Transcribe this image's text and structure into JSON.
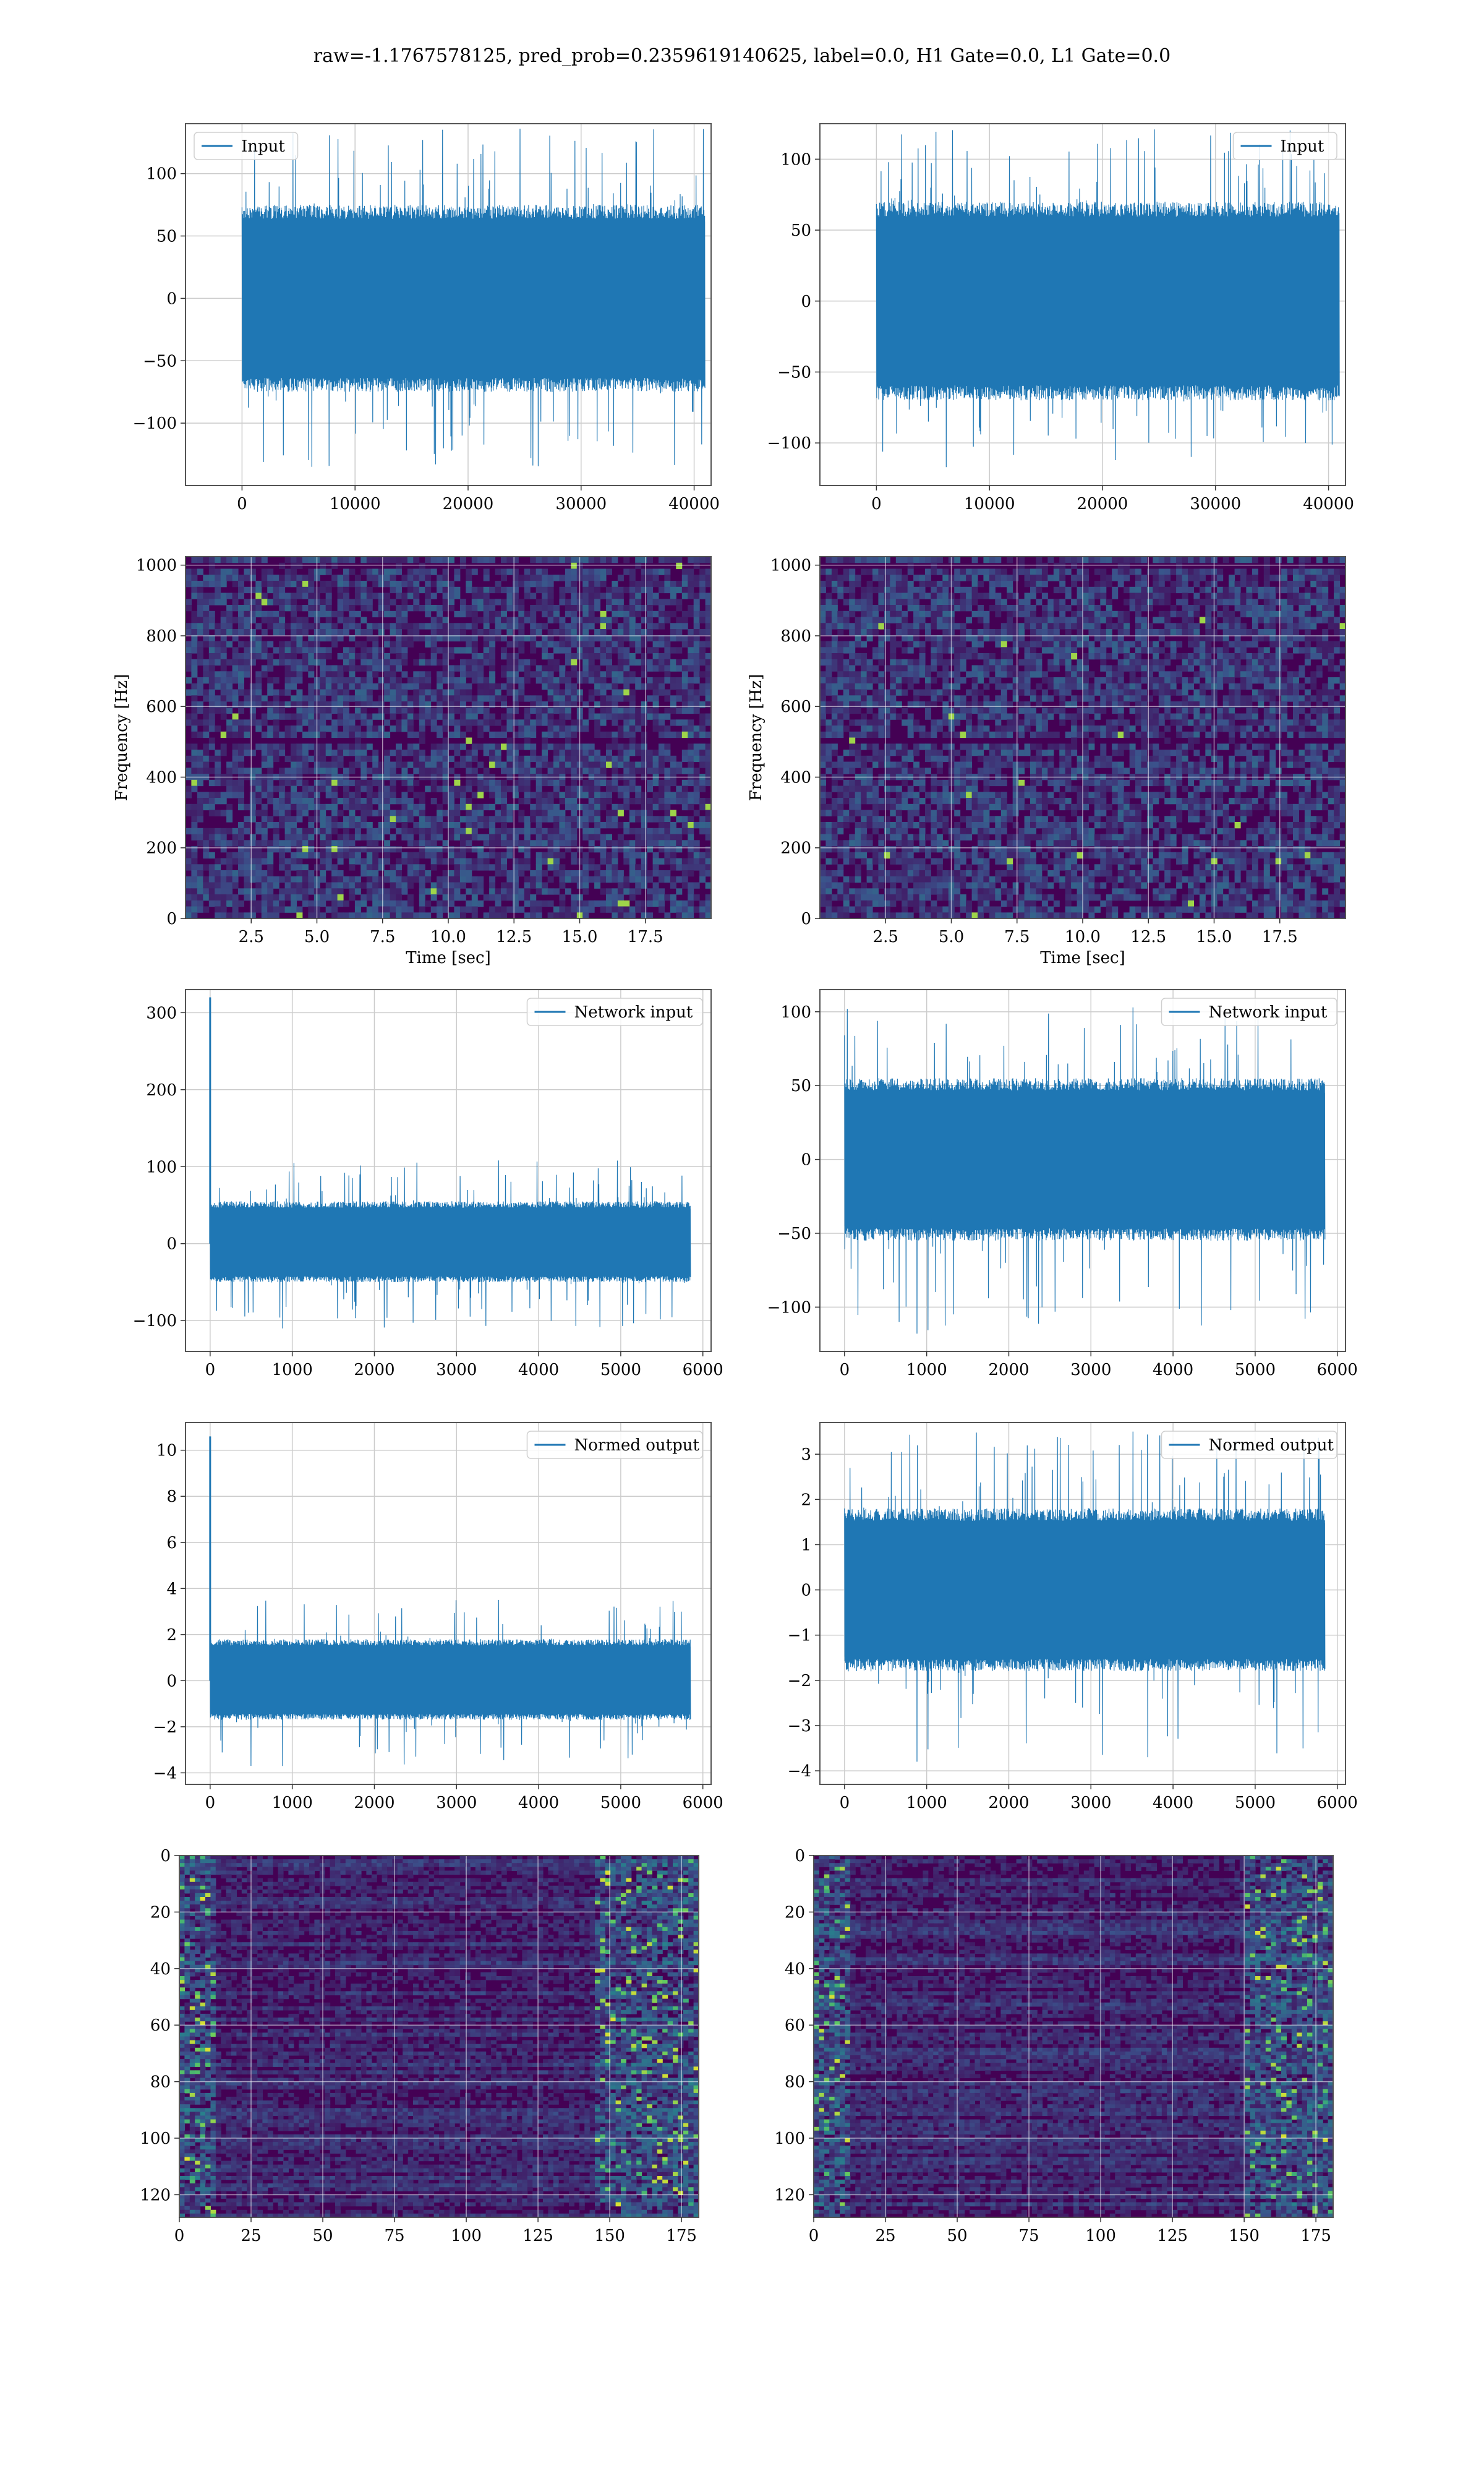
{
  "figure": {
    "title": "raw=-1.1767578125, pred_prob=0.2359619140625, label=0.0, H1 Gate=0.0, L1 Gate=0.0"
  },
  "colors": {
    "line": "#1f77b4",
    "grid": "#cccccc",
    "axes": "#555555",
    "viridis_low": "#440154",
    "viridis_mid": "#21918c",
    "viridis_high": "#fde725"
  },
  "chart_data": [
    {
      "id": "ts_input_h1",
      "type": "line",
      "legend": {
        "label": "Input",
        "loc": "upper left"
      },
      "xlim": [
        -5000,
        41500
      ],
      "ylim": [
        -150,
        140
      ],
      "xticks": [
        0,
        10000,
        20000,
        30000,
        40000
      ],
      "xtick_labels": [
        "0",
        "10000",
        "20000",
        "30000",
        "40000"
      ],
      "yticks": [
        -100,
        -50,
        0,
        50,
        100
      ],
      "ytick_labels": [
        "−100",
        "−50",
        "0",
        "50",
        "100"
      ],
      "xlabel": "",
      "ylabel": "",
      "series": [
        {
          "x_range": [
            0,
            40960
          ],
          "band": [
            -75,
            75
          ],
          "extremes": [
            -135,
            136
          ],
          "spikes": []
        }
      ]
    },
    {
      "id": "ts_input_l1",
      "type": "line",
      "legend": {
        "label": "Input",
        "loc": "upper right"
      },
      "xlim": [
        -5000,
        41500
      ],
      "ylim": [
        -130,
        125
      ],
      "xticks": [
        0,
        10000,
        20000,
        30000,
        40000
      ],
      "xtick_labels": [
        "0",
        "10000",
        "20000",
        "30000",
        "40000"
      ],
      "yticks": [
        -100,
        -50,
        0,
        50,
        100
      ],
      "ytick_labels": [
        "−100",
        "−50",
        "0",
        "50",
        "100"
      ],
      "xlabel": "",
      "ylabel": "",
      "series": [
        {
          "x_range": [
            0,
            40960
          ],
          "band": [
            -70,
            70
          ],
          "extremes": [
            -117,
            121
          ],
          "spikes": []
        }
      ]
    },
    {
      "id": "spec_h1",
      "type": "heatmap",
      "xlim": [
        0,
        20
      ],
      "ylim": [
        0,
        1024
      ],
      "xticks": [
        2.5,
        5.0,
        7.5,
        10.0,
        12.5,
        15.0,
        17.5
      ],
      "xtick_labels": [
        "2.5",
        "5.0",
        "7.5",
        "10.0",
        "12.5",
        "15.0",
        "17.5"
      ],
      "yticks": [
        0,
        200,
        400,
        600,
        800,
        1000
      ],
      "ytick_labels": [
        "0",
        "200",
        "400",
        "600",
        "800",
        "1000"
      ],
      "xlabel": "Time [sec]",
      "ylabel": "Frequency [Hz]",
      "dark_bands": [
        500,
        1000
      ]
    },
    {
      "id": "spec_l1",
      "type": "heatmap",
      "xlim": [
        0,
        20
      ],
      "ylim": [
        0,
        1024
      ],
      "xticks": [
        2.5,
        5.0,
        7.5,
        10.0,
        12.5,
        15.0,
        17.5
      ],
      "xtick_labels": [
        "2.5",
        "5.0",
        "7.5",
        "10.0",
        "12.5",
        "15.0",
        "17.5"
      ],
      "yticks": [
        0,
        200,
        400,
        600,
        800,
        1000
      ],
      "ytick_labels": [
        "0",
        "200",
        "400",
        "600",
        "800",
        "1000"
      ],
      "xlabel": "Time [sec]",
      "ylabel": "Frequency [Hz]",
      "dark_bands": [
        500,
        1000
      ]
    },
    {
      "id": "net_input_h1",
      "type": "line",
      "legend": {
        "label": "Network input",
        "loc": "upper right"
      },
      "xlim": [
        -300,
        6100
      ],
      "ylim": [
        -140,
        330
      ],
      "xticks": [
        0,
        1000,
        2000,
        3000,
        4000,
        5000,
        6000
      ],
      "xtick_labels": [
        "0",
        "1000",
        "2000",
        "3000",
        "4000",
        "5000",
        "6000"
      ],
      "yticks": [
        -100,
        0,
        100,
        200,
        300
      ],
      "ytick_labels": [
        "−100",
        "0",
        "100",
        "200",
        "300"
      ],
      "xlabel": "",
      "ylabel": "",
      "series": [
        {
          "x_range": [
            0,
            5850
          ],
          "band": [
            -50,
            55
          ],
          "extremes": [
            -110,
            108
          ],
          "spikes": [
            [
              0,
              320
            ]
          ]
        }
      ]
    },
    {
      "id": "net_input_l1",
      "type": "line",
      "legend": {
        "label": "Network input",
        "loc": "upper right"
      },
      "xlim": [
        -300,
        6100
      ],
      "ylim": [
        -130,
        115
      ],
      "xticks": [
        0,
        1000,
        2000,
        3000,
        4000,
        5000,
        6000
      ],
      "xtick_labels": [
        "0",
        "1000",
        "2000",
        "3000",
        "4000",
        "5000",
        "6000"
      ],
      "yticks": [
        -100,
        -50,
        0,
        50,
        100
      ],
      "ytick_labels": [
        "−100",
        "−50",
        "0",
        "50",
        "100"
      ],
      "xlabel": "",
      "ylabel": "",
      "series": [
        {
          "x_range": [
            0,
            5850
          ],
          "band": [
            -55,
            55
          ],
          "extremes": [
            -118,
            103
          ],
          "spikes": []
        }
      ]
    },
    {
      "id": "normed_h1",
      "type": "line",
      "legend": {
        "label": "Normed output",
        "loc": "upper right"
      },
      "xlim": [
        -300,
        6100
      ],
      "ylim": [
        -4.5,
        11.2
      ],
      "xticks": [
        0,
        1000,
        2000,
        3000,
        4000,
        5000,
        6000
      ],
      "xtick_labels": [
        "0",
        "1000",
        "2000",
        "3000",
        "4000",
        "5000",
        "6000"
      ],
      "yticks": [
        -4,
        -2,
        0,
        2,
        4,
        6,
        8,
        10
      ],
      "ytick_labels": [
        "−4",
        "−2",
        "0",
        "2",
        "4",
        "6",
        "8",
        "10"
      ],
      "xlabel": "",
      "ylabel": "",
      "series": [
        {
          "x_range": [
            0,
            5850
          ],
          "band": [
            -1.7,
            1.8
          ],
          "extremes": [
            -3.7,
            3.5
          ],
          "spikes": [
            [
              0,
              10.6
            ]
          ]
        }
      ]
    },
    {
      "id": "normed_l1",
      "type": "line",
      "legend": {
        "label": "Normed output",
        "loc": "upper right"
      },
      "xlim": [
        -300,
        6100
      ],
      "ylim": [
        -4.3,
        3.7
      ],
      "xticks": [
        0,
        1000,
        2000,
        3000,
        4000,
        5000,
        6000
      ],
      "xtick_labels": [
        "0",
        "1000",
        "2000",
        "3000",
        "4000",
        "5000",
        "6000"
      ],
      "yticks": [
        -4,
        -3,
        -2,
        -1,
        0,
        1,
        2,
        3
      ],
      "ytick_labels": [
        "−4",
        "−3",
        "−2",
        "−1",
        "0",
        "1",
        "2",
        "3"
      ],
      "xlabel": "",
      "ylabel": "",
      "series": [
        {
          "x_range": [
            0,
            5850
          ],
          "band": [
            -1.8,
            1.8
          ],
          "extremes": [
            -3.8,
            3.5
          ],
          "spikes": []
        }
      ]
    },
    {
      "id": "features_h1",
      "type": "heatmap",
      "xlim": [
        0,
        181
      ],
      "ylim": [
        128,
        0
      ],
      "xticks": [
        0,
        25,
        50,
        75,
        100,
        125,
        150,
        175
      ],
      "xtick_labels": [
        "0",
        "25",
        "50",
        "75",
        "100",
        "125",
        "150",
        "175"
      ],
      "yticks": [
        0,
        20,
        40,
        60,
        80,
        100,
        120
      ],
      "ytick_labels": [
        "0",
        "20",
        "40",
        "60",
        "80",
        "100",
        "120"
      ],
      "xlabel": "",
      "ylabel": "",
      "bright_columns": [
        [
          0,
          12
        ],
        [
          145,
          181
        ]
      ]
    },
    {
      "id": "features_l1",
      "type": "heatmap",
      "xlim": [
        0,
        181
      ],
      "ylim": [
        128,
        0
      ],
      "xticks": [
        0,
        25,
        50,
        75,
        100,
        125,
        150,
        175
      ],
      "xtick_labels": [
        "0",
        "25",
        "50",
        "75",
        "100",
        "125",
        "150",
        "175"
      ],
      "yticks": [
        0,
        20,
        40,
        60,
        80,
        100,
        120
      ],
      "ytick_labels": [
        "0",
        "20",
        "40",
        "60",
        "80",
        "100",
        "120"
      ],
      "xlabel": "",
      "ylabel": "",
      "bright_columns": [
        [
          0,
          12
        ],
        [
          150,
          181
        ]
      ]
    }
  ]
}
